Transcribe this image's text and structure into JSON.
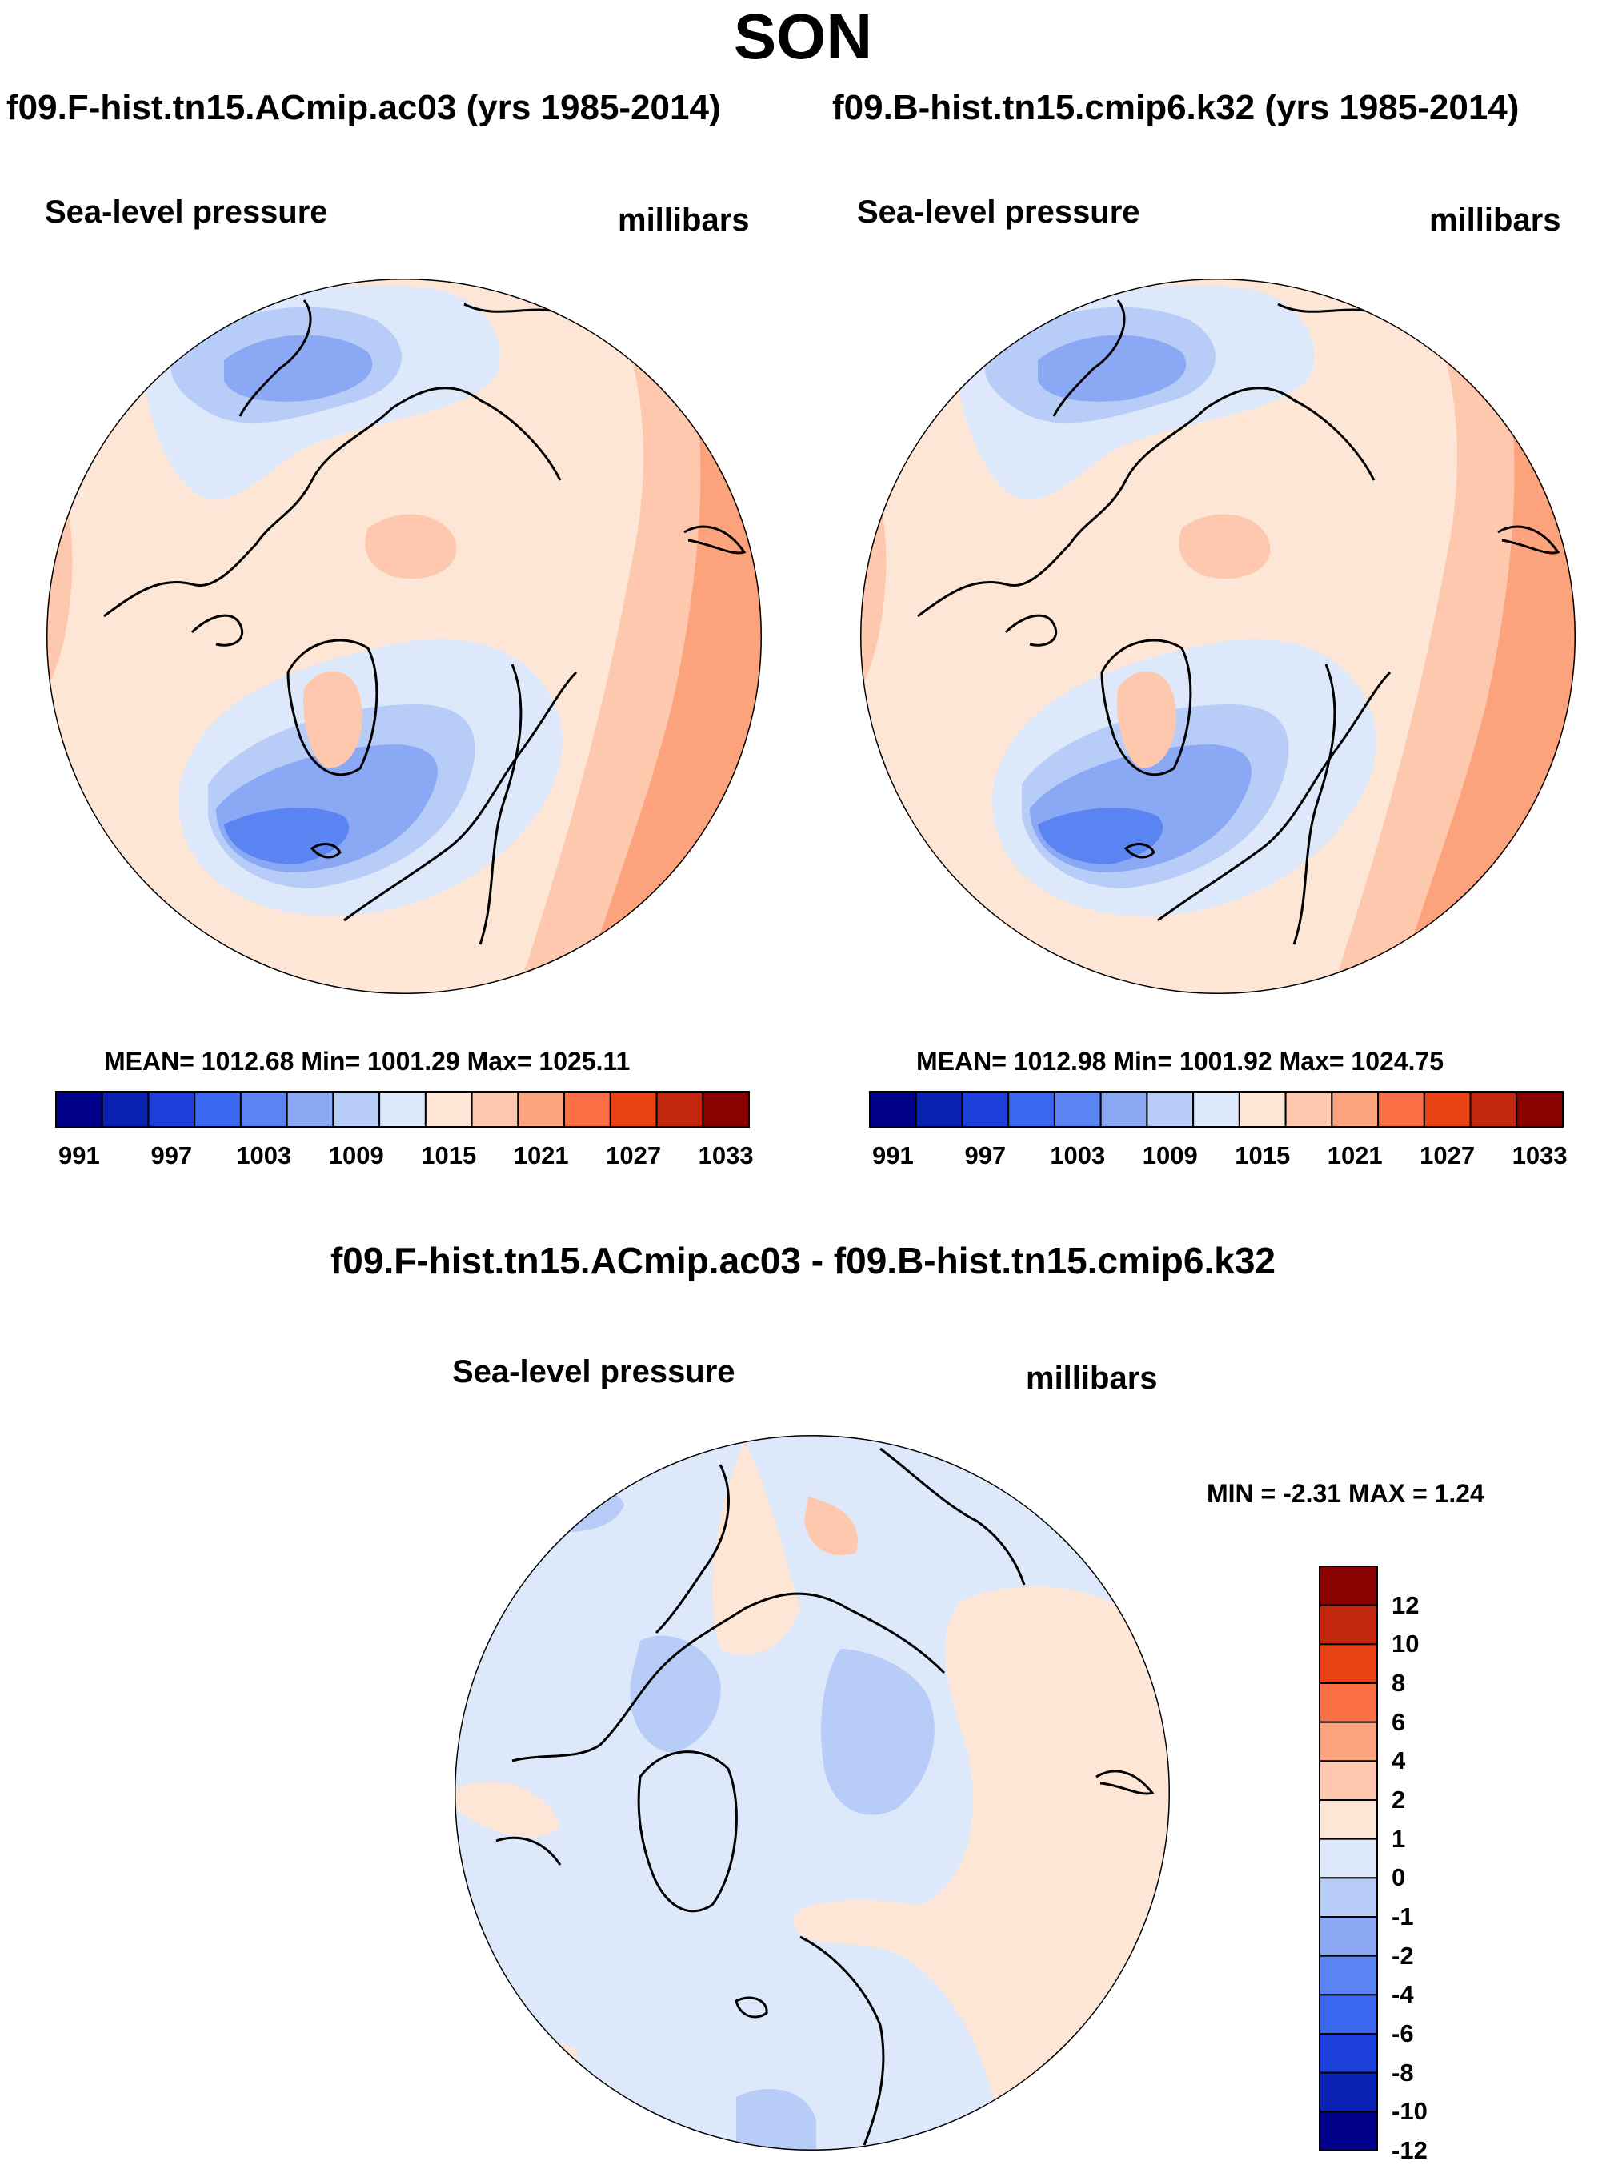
{
  "figure": {
    "title": "SON",
    "diff_title": "f09.F-hist.tn15.ACmip.ac03 - f09.B-hist.tn15.cmip6.k32"
  },
  "panels": [
    {
      "run_title": "f09.F-hist.tn15.ACmip.ac03 (yrs 1985-2014)",
      "left_label": "Sea-level pressure",
      "right_label": "millibars",
      "stats": "MEAN= 1012.68  Min= 1001.29  Max= 1025.11"
    },
    {
      "run_title": "f09.B-hist.tn15.cmip6.k32 (yrs 1985-2014)",
      "left_label": "Sea-level pressure",
      "right_label": "millibars",
      "stats": "MEAN= 1012.98  Min= 1001.92  Max= 1024.75"
    },
    {
      "left_label": "Sea-level pressure",
      "right_label": "millibars",
      "stats": "MIN =  -2.31 MAX =   1.24"
    }
  ],
  "chart_data": [
    {
      "type": "heatmap",
      "projection": "north polar stereographic",
      "title": "f09.F-hist.tn15.ACmip.ac03 (yrs 1985-2014)",
      "variable": "Sea-level pressure",
      "units": "millibars",
      "mean": 1012.68,
      "min": 1001.29,
      "max": 1025.11,
      "colorbar_levels": [
        991,
        994,
        997,
        1000,
        1003,
        1006,
        1009,
        1012,
        1015,
        1018,
        1021,
        1024,
        1027,
        1030,
        1033
      ],
      "colorbar_labels": [
        "991",
        "997",
        "1003",
        "1009",
        "1015",
        "1021",
        "1027",
        "1033"
      ]
    },
    {
      "type": "heatmap",
      "projection": "north polar stereographic",
      "title": "f09.B-hist.tn15.cmip6.k32 (yrs 1985-2014)",
      "variable": "Sea-level pressure",
      "units": "millibars",
      "mean": 1012.98,
      "min": 1001.92,
      "max": 1024.75,
      "colorbar_levels": [
        991,
        994,
        997,
        1000,
        1003,
        1006,
        1009,
        1012,
        1015,
        1018,
        1021,
        1024,
        1027,
        1030,
        1033
      ],
      "colorbar_labels": [
        "991",
        "997",
        "1003",
        "1009",
        "1015",
        "1021",
        "1027",
        "1033"
      ]
    },
    {
      "type": "heatmap",
      "projection": "north polar stereographic",
      "title": "f09.F-hist.tn15.ACmip.ac03 - f09.B-hist.tn15.cmip6.k32",
      "variable": "Sea-level pressure",
      "units": "millibars",
      "min": -2.31,
      "max": 1.24,
      "colorbar_levels": [
        -12,
        -10,
        -8,
        -6,
        -4,
        -2,
        -1,
        0,
        1,
        2,
        4,
        6,
        8,
        10,
        12
      ],
      "colorbar_labels": [
        "12",
        "10",
        "8",
        "6",
        "4",
        "2",
        "1",
        "0",
        "-1",
        "-2",
        "-4",
        "-6",
        "-8",
        "-10",
        "-12"
      ]
    }
  ],
  "colors": {
    "palette": [
      "#00008b",
      "#0a22b4",
      "#1b3fd8",
      "#3a66f0",
      "#5b84f3",
      "#8aa8f4",
      "#b8ccf8",
      "#dde8fb",
      "#fde6d6",
      "#fdc8ae",
      "#fca27c",
      "#fb7046",
      "#e84213",
      "#c2260c",
      "#8b0000"
    ]
  }
}
